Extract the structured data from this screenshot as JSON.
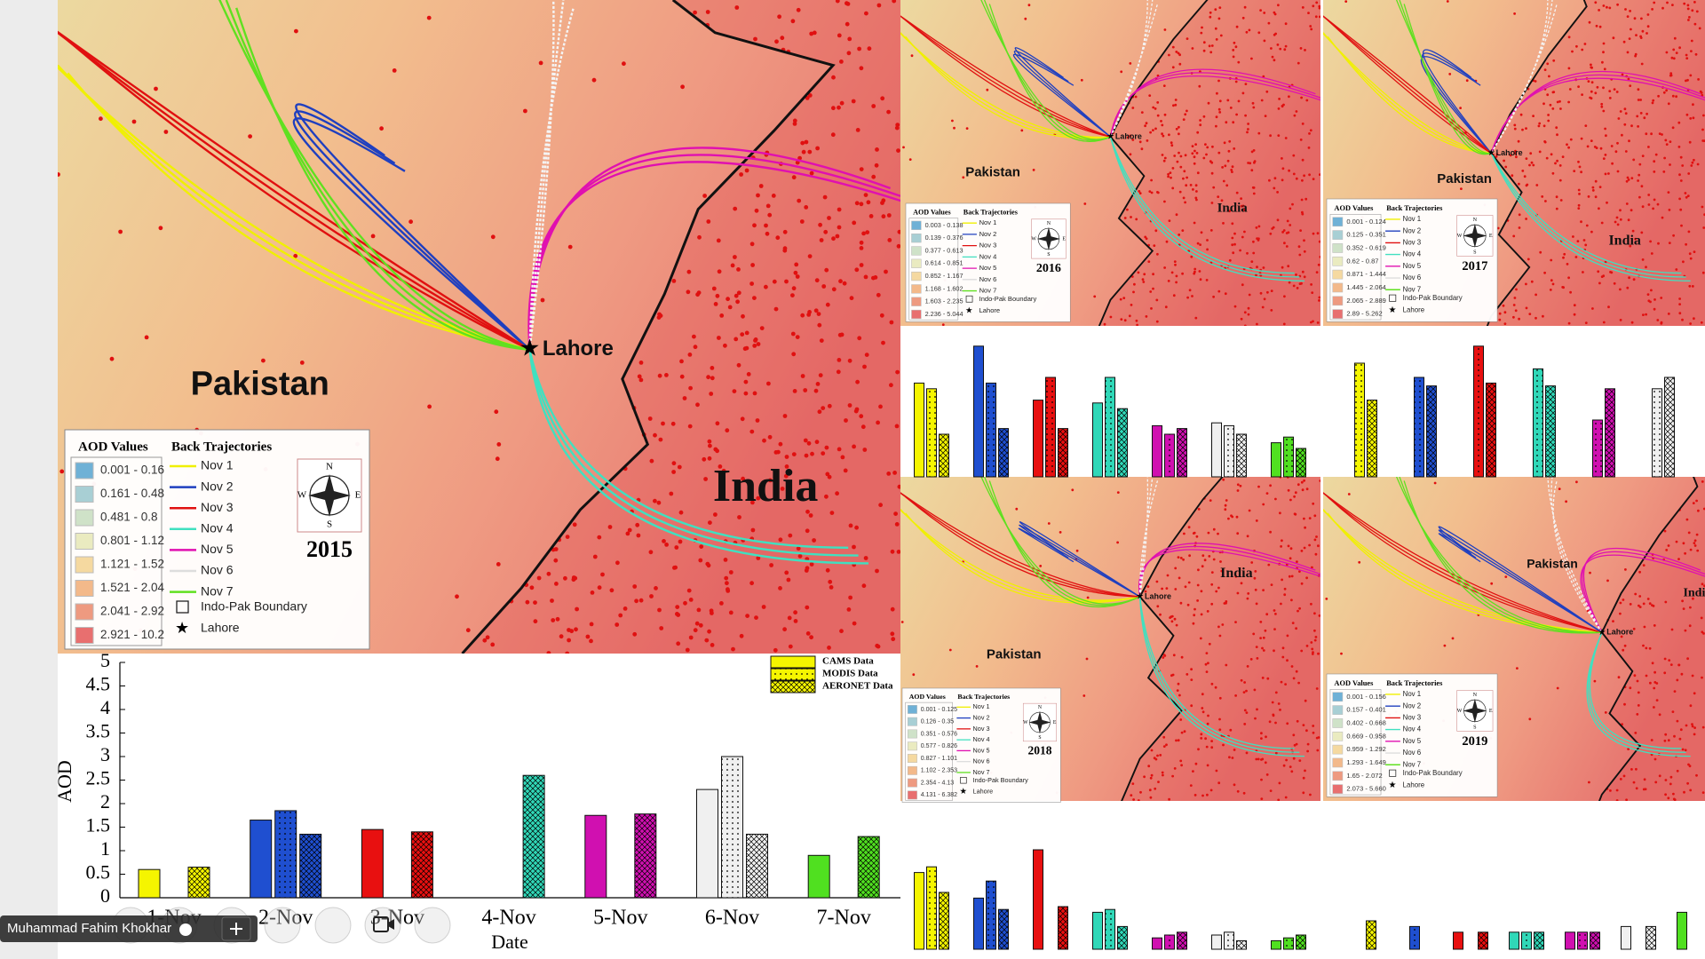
{
  "maps": [
    {
      "year": "2015",
      "countries": [
        "Pakistan",
        "India"
      ],
      "city": "Lahore",
      "legend": {
        "aod_title": "AOD Values",
        "traj_title": "Back Trajectories",
        "aod_ranges": [
          "0.001 - 0.16",
          "0.161 - 0.48",
          "0.481 - 0.8",
          "0.801 - 1.12",
          "1.121 - 1.52",
          "1.521 - 2.04",
          "2.041 - 2.92",
          "2.921 - 10.2"
        ],
        "trajectories": [
          "Nov 1",
          "Nov 2",
          "Nov 3",
          "Nov 4",
          "Nov 5",
          "Nov 6",
          "Nov 7"
        ],
        "boundary": "Indo-Pak Boundary",
        "city": "Lahore",
        "compass": [
          "N",
          "E",
          "S",
          "W"
        ]
      }
    },
    {
      "year": "2016",
      "countries": [
        "Pakistan",
        "India"
      ],
      "city": "Lahore",
      "legend": {
        "aod_title": "AOD Values",
        "traj_title": "Back Trajectories",
        "aod_ranges": [
          "0.003 - 0.138",
          "0.139 - 0.376",
          "0.377 - 0.613",
          "0.614 - 0.851",
          "0.852 - 1.167",
          "1.168 - 1.602",
          "1.603 - 2.235",
          "2.236 - 5.044"
        ],
        "trajectories": [
          "Nov 1",
          "Nov 2",
          "Nov 3",
          "Nov 4",
          "Nov 5",
          "Nov 6",
          "Nov 7"
        ],
        "boundary": "Indo-Pak Boundary",
        "city": "Lahore",
        "compass": [
          "N",
          "E",
          "S",
          "W"
        ]
      }
    },
    {
      "year": "2017",
      "countries": [
        "Pakistan",
        "India"
      ],
      "city": "Lahore",
      "legend": {
        "aod_title": "AOD Values",
        "traj_title": "Back Trajectories",
        "aod_ranges": [
          "0.001 - 0.124",
          "0.125 - 0.351",
          "0.352 - 0.619",
          "0.62 - 0.87",
          "0.871 - 1.444",
          "1.445 - 2.064",
          "2.065 - 2.889",
          "2.89 - 5.262"
        ],
        "trajectories": [
          "Nov 1",
          "Nov 2",
          "Nov 3",
          "Nov 4",
          "Nov 5",
          "Nov 6",
          "Nov 7"
        ],
        "boundary": "Indo-Pak Boundary",
        "city": "Lahore",
        "compass": [
          "N",
          "E",
          "S",
          "W"
        ]
      }
    },
    {
      "year": "2018",
      "countries": [
        "Pakistan",
        "India"
      ],
      "city": "Lahore",
      "legend": {
        "aod_title": "AOD Values",
        "traj_title": "Back Trajectories",
        "aod_ranges": [
          "0.001 - 0.125",
          "0.126 - 0.35",
          "0.351 - 0.576",
          "0.577 - 0.826",
          "0.827 - 1.101",
          "1.102 - 2.353",
          "2.354 - 4.13",
          "4.131 - 6.382"
        ],
        "trajectories": [
          "Nov 1",
          "Nov 2",
          "Nov 3",
          "Nov 4",
          "Nov 5",
          "Nov 6",
          "Nov 7"
        ],
        "boundary": "Indo-Pak Boundary",
        "city": "Lahore",
        "compass": [
          "N",
          "E",
          "S",
          "W"
        ]
      }
    },
    {
      "year": "2019",
      "countries": [
        "Pakistan",
        "India"
      ],
      "city": "Lahore",
      "legend": {
        "aod_title": "AOD Values",
        "traj_title": "Back Trajectories",
        "aod_ranges": [
          "0.001 - 0.156",
          "0.157 - 0.401",
          "0.402 - 0.668",
          "0.669 - 0.958",
          "0.959 - 1.292",
          "1.293 - 1.649",
          "1.65 - 2.072",
          "2.073 - 5.660"
        ],
        "trajectories": [
          "Nov 1",
          "Nov 2",
          "Nov 3",
          "Nov 4",
          "Nov 5",
          "Nov 6",
          "Nov 7"
        ],
        "boundary": "Indo-Pak Boundary",
        "city": "Lahore",
        "compass": [
          "N",
          "E",
          "S",
          "W"
        ]
      }
    }
  ],
  "chart_data": [
    {
      "type": "bar",
      "x_label": "Date",
      "y_label": "AOD",
      "categories": [
        "1-Nov",
        "2-Nov",
        "3-Nov",
        "4-Nov",
        "5-Nov",
        "6-Nov",
        "7-Nov"
      ],
      "colors": [
        "#f5f500",
        "#1f4fd0",
        "#e81010",
        "#30d8b8",
        "#d010b0",
        "#f0f0f0",
        "#50e020"
      ],
      "series": [
        {
          "name": "CAMS Data",
          "pattern": "solid",
          "values": [
            0.6,
            1.65,
            1.45,
            null,
            1.75,
            2.3,
            0.9
          ]
        },
        {
          "name": "MODIS Data",
          "pattern": "dots",
          "values": [
            null,
            1.85,
            null,
            null,
            null,
            3.0,
            null
          ]
        },
        {
          "name": "AERONET Data",
          "pattern": "cross",
          "values": [
            0.65,
            1.35,
            1.4,
            2.6,
            1.78,
            1.35,
            1.3
          ]
        }
      ],
      "ylim": [
        0,
        5
      ],
      "yticks": [
        0,
        0.5,
        1,
        1.5,
        2,
        2.5,
        3,
        3.5,
        4,
        4.5,
        5
      ]
    },
    {
      "type": "bar",
      "colors": [
        "#f5f500",
        "#1f4fd0",
        "#e81010",
        "#30d8b8",
        "#d010b0",
        "#f0f0f0",
        "#50e020"
      ],
      "series": [
        {
          "pattern": "solid",
          "values": [
            3.3,
            4.6,
            2.7,
            2.6,
            1.8,
            1.9,
            1.2
          ]
        },
        {
          "pattern": "dots",
          "values": [
            3.1,
            3.3,
            3.5,
            3.5,
            1.5,
            1.8,
            1.4
          ]
        },
        {
          "pattern": "cross",
          "values": [
            1.5,
            1.7,
            1.7,
            2.4,
            1.7,
            1.5,
            1.0
          ]
        }
      ],
      "ylim": [
        0,
        5
      ]
    },
    {
      "type": "bar",
      "colors": [
        "#f5f500",
        "#1f4fd0",
        "#e81010",
        "#30d8b8",
        "#d010b0",
        "#f0f0f0"
      ],
      "series": [
        {
          "pattern": "solid",
          "values": [
            null,
            null,
            null,
            null,
            null,
            null
          ]
        },
        {
          "pattern": "dots",
          "values": [
            4.0,
            3.5,
            4.6,
            3.8,
            2.0,
            3.1
          ]
        },
        {
          "pattern": "cross",
          "values": [
            2.7,
            3.2,
            3.3,
            3.2,
            3.1,
            3.5
          ]
        }
      ],
      "ylim": [
        0,
        5
      ]
    },
    {
      "type": "bar",
      "colors": [
        "#f5f500",
        "#1f4fd0",
        "#e81010",
        "#30d8b8",
        "#d010b0",
        "#f0f0f0",
        "#50e020"
      ],
      "series": [
        {
          "pattern": "solid",
          "values": [
            2.7,
            1.8,
            3.5,
            1.3,
            0.4,
            0.5,
            0.3
          ]
        },
        {
          "pattern": "dots",
          "values": [
            2.9,
            2.4,
            null,
            1.4,
            0.5,
            0.6,
            0.4
          ]
        },
        {
          "pattern": "cross",
          "values": [
            2.0,
            1.4,
            1.5,
            0.8,
            0.6,
            0.3,
            0.5
          ]
        }
      ],
      "ylim": [
        0,
        5
      ]
    },
    {
      "type": "bar",
      "colors": [
        "#f5f500",
        "#1f4fd0",
        "#e81010",
        "#30d8b8",
        "#d010b0",
        "#f0f0f0",
        "#50e020"
      ],
      "series": [
        {
          "pattern": "solid",
          "values": [
            null,
            null,
            0.6,
            0.6,
            0.6,
            0.8,
            1.3
          ]
        },
        {
          "pattern": "dots",
          "values": [
            null,
            0.8,
            null,
            0.6,
            0.6,
            null,
            null
          ]
        },
        {
          "pattern": "cross",
          "values": [
            1.0,
            null,
            0.6,
            0.6,
            0.6,
            0.8,
            null
          ]
        }
      ],
      "ylim": [
        0,
        5
      ]
    }
  ],
  "participant_name": "Muhammad Fahim Khokhar"
}
